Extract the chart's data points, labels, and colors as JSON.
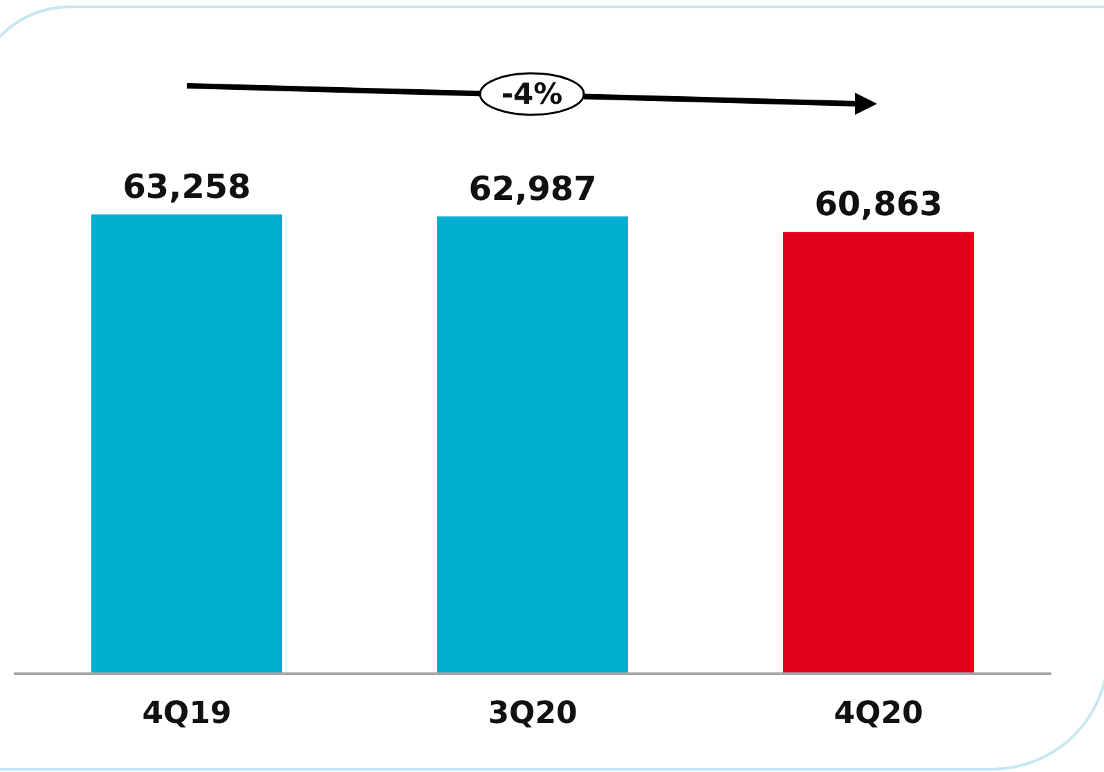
{
  "chart_data": {
    "type": "bar",
    "categories": [
      "4Q19",
      "3Q20",
      "4Q20"
    ],
    "values": [
      63258,
      62987,
      60863
    ],
    "colors": [
      "#00afd0",
      "#00afd0",
      "#e2001a"
    ],
    "value_labels": [
      "63,258",
      "62,987",
      "60,863"
    ],
    "annotations": [
      "-4%"
    ]
  }
}
